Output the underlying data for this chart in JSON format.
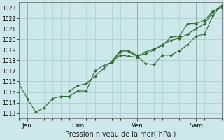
{
  "title": "Pression niveau de la mer( hPa )",
  "bg_color": "#cce8ea",
  "grid_color": "#a8c8ca",
  "line_color": "#2d6a2d",
  "marker_color": "#2d6a2d",
  "ylim": [
    1012.5,
    1023.5
  ],
  "yticks": [
    1013,
    1014,
    1015,
    1016,
    1017,
    1018,
    1019,
    1020,
    1021,
    1022,
    1023
  ],
  "xlim": [
    0,
    96
  ],
  "x_ticks": [
    4,
    28,
    56,
    84
  ],
  "x_labels": [
    "Jeu",
    "Dim",
    "Ven",
    "Sam"
  ],
  "series1_x": [
    0,
    4,
    8,
    12,
    16,
    20,
    24,
    28,
    32,
    36,
    40,
    44,
    48,
    52,
    56,
    60,
    64,
    68,
    72,
    76,
    80,
    84,
    88,
    92,
    96
  ],
  "series1_y": [
    1015.8,
    1014.4,
    1013.1,
    1013.5,
    1014.4,
    1014.6,
    1014.6,
    1015.1,
    1015.1,
    1017.0,
    1017.5,
    1017.8,
    1018.8,
    1018.8,
    1018.4,
    1017.7,
    1017.6,
    1018.5,
    1018.5,
    1018.9,
    1019.5,
    1020.3,
    1020.5,
    1022.3,
    1023.2
  ],
  "series2_x": [
    24,
    28,
    32,
    36,
    40,
    44,
    48,
    52,
    56,
    60,
    64,
    68,
    72,
    76,
    80,
    84,
    88,
    92,
    96
  ],
  "series2_y": [
    1015.1,
    1015.6,
    1015.8,
    1016.5,
    1017.2,
    1017.9,
    1018.9,
    1018.9,
    1018.5,
    1018.6,
    1019.0,
    1019.5,
    1019.9,
    1020.1,
    1020.5,
    1021.0,
    1021.5,
    1022.6,
    1023.2
  ],
  "series3_x": [
    44,
    48,
    52,
    56,
    60,
    64,
    68,
    72,
    76,
    80,
    84,
    88,
    92,
    96
  ],
  "series3_y": [
    1017.8,
    1018.5,
    1018.4,
    1018.3,
    1018.8,
    1019.1,
    1019.4,
    1020.2,
    1020.3,
    1021.5,
    1021.5,
    1021.8,
    1022.7,
    1023.0
  ]
}
